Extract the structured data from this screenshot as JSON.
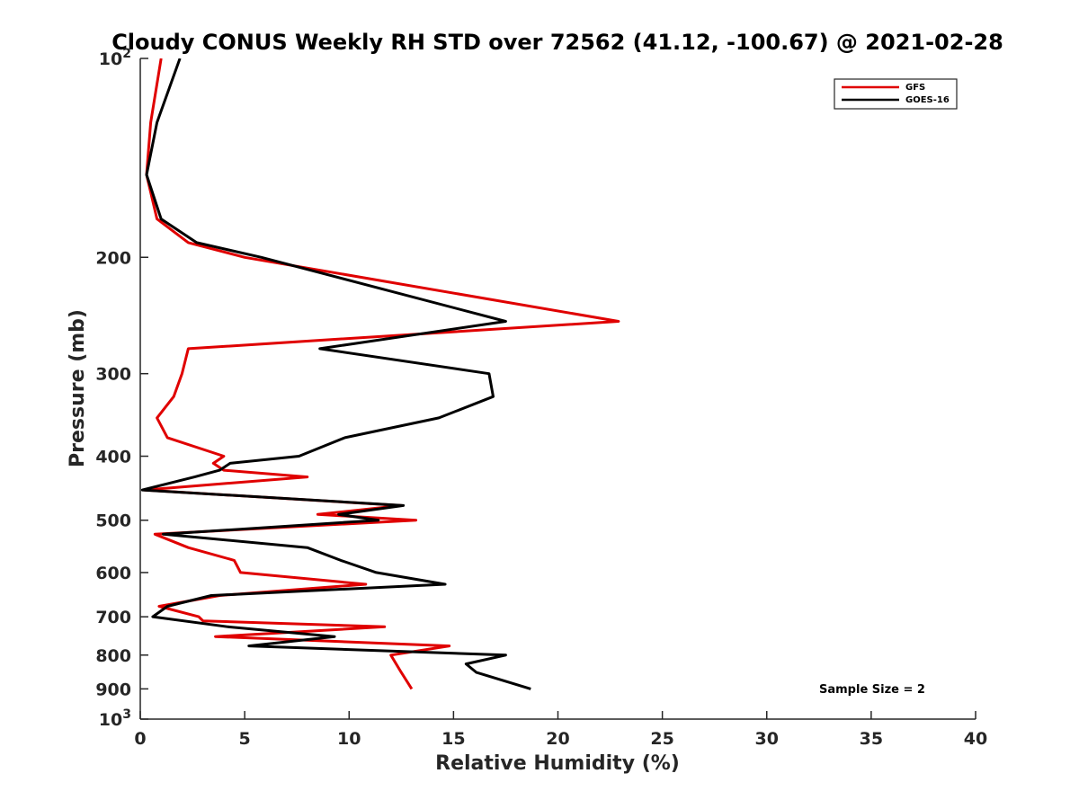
{
  "chart_data": {
    "type": "line",
    "title": "Cloudy CONUS Weekly RH STD over 72562 (41.12, -100.67) @ 2021-02-28",
    "xlabel": "Relative Humidity (%)",
    "ylabel": "Pressure (mb)",
    "xlim": [
      0,
      40
    ],
    "ylim": [
      100,
      1000
    ],
    "y_scale": "log",
    "y_reversed": true,
    "x_ticks": [
      "0",
      "5",
      "10",
      "15",
      "20",
      "25",
      "30",
      "35",
      "40"
    ],
    "y_ticks": [
      {
        "value": 100,
        "base": "10",
        "exp": "2"
      },
      {
        "value": 200,
        "label": "200"
      },
      {
        "value": 300,
        "label": "300"
      },
      {
        "value": 400,
        "label": "400"
      },
      {
        "value": 500,
        "label": "500"
      },
      {
        "value": 600,
        "label": "600"
      },
      {
        "value": 700,
        "label": "700"
      },
      {
        "value": 800,
        "label": "800"
      },
      {
        "value": 900,
        "label": "900"
      },
      {
        "value": 1000,
        "base": "10",
        "exp": "3"
      }
    ],
    "grid": false,
    "legend_position": "top-right",
    "annotation": "Sample Size = 2",
    "series": [
      {
        "name": "GFS",
        "color": "#e00000",
        "points": [
          [
            1.0,
            100
          ],
          [
            0.5,
            125
          ],
          [
            0.3,
            150
          ],
          [
            0.8,
            175
          ],
          [
            2.3,
            190
          ],
          [
            5.0,
            200
          ],
          [
            22.9,
            250
          ],
          [
            2.3,
            275
          ],
          [
            2.0,
            300
          ],
          [
            1.6,
            325
          ],
          [
            0.8,
            350
          ],
          [
            1.3,
            375
          ],
          [
            4.0,
            400
          ],
          [
            3.5,
            410
          ],
          [
            4.0,
            420
          ],
          [
            8.0,
            430
          ],
          [
            0.2,
            450
          ],
          [
            12.5,
            475
          ],
          [
            8.5,
            490
          ],
          [
            13.2,
            500
          ],
          [
            0.7,
            525
          ],
          [
            2.3,
            550
          ],
          [
            4.5,
            575
          ],
          [
            4.8,
            600
          ],
          [
            10.8,
            625
          ],
          [
            3.8,
            650
          ],
          [
            0.9,
            675
          ],
          [
            2.8,
            700
          ],
          [
            3.0,
            710
          ],
          [
            11.7,
            725
          ],
          [
            3.6,
            750
          ],
          [
            14.8,
            775
          ],
          [
            12.0,
            800
          ],
          [
            12.5,
            850
          ],
          [
            13.0,
            900
          ]
        ]
      },
      {
        "name": "GOES-16",
        "color": "#000000",
        "points": [
          [
            1.9,
            100
          ],
          [
            0.8,
            125
          ],
          [
            0.3,
            150
          ],
          [
            1.0,
            175
          ],
          [
            2.7,
            190
          ],
          [
            5.8,
            200
          ],
          [
            17.5,
            250
          ],
          [
            8.6,
            275
          ],
          [
            16.7,
            300
          ],
          [
            16.9,
            325
          ],
          [
            14.3,
            350
          ],
          [
            9.8,
            375
          ],
          [
            7.6,
            400
          ],
          [
            4.3,
            410
          ],
          [
            3.8,
            420
          ],
          [
            2.6,
            430
          ],
          [
            0.1,
            450
          ],
          [
            12.6,
            475
          ],
          [
            9.5,
            490
          ],
          [
            11.4,
            500
          ],
          [
            1.1,
            525
          ],
          [
            8.0,
            550
          ],
          [
            9.6,
            575
          ],
          [
            11.3,
            600
          ],
          [
            14.6,
            625
          ],
          [
            3.4,
            650
          ],
          [
            1.3,
            675
          ],
          [
            0.6,
            700
          ],
          [
            4.2,
            725
          ],
          [
            9.3,
            750
          ],
          [
            5.2,
            775
          ],
          [
            17.5,
            800
          ],
          [
            15.6,
            825
          ],
          [
            16.1,
            850
          ],
          [
            18.7,
            900
          ]
        ]
      }
    ]
  }
}
